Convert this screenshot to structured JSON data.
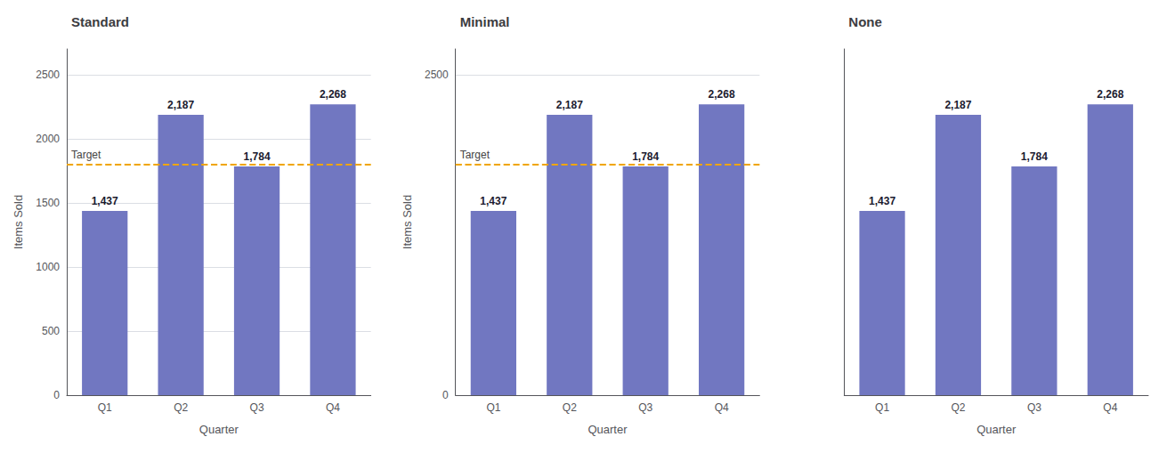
{
  "chart_data": [
    {
      "type": "bar",
      "title": "Standard",
      "xlabel": "Quarter",
      "ylabel": "Items Sold",
      "categories": [
        "Q1",
        "Q2",
        "Q3",
        "Q4"
      ],
      "values": [
        1437,
        2187,
        1784,
        2268
      ],
      "value_labels": [
        "1,437",
        "2,187",
        "1,784",
        "2,268"
      ],
      "data_labels": true,
      "color": "#7177c1",
      "ylim": [
        0,
        2700
      ],
      "yticks": [
        0,
        500,
        1000,
        1500,
        2000,
        2500
      ],
      "grid": true,
      "annotations": [
        {
          "type": "hline",
          "y": 1800,
          "text": "Target",
          "color": "#f0a500",
          "line_style": "dashed"
        }
      ]
    },
    {
      "type": "bar",
      "title": "Minimal",
      "xlabel": "Quarter",
      "ylabel": "Items Sold",
      "categories": [
        "Q1",
        "Q2",
        "Q3",
        "Q4"
      ],
      "values": [
        1437,
        2187,
        1784,
        2268
      ],
      "value_labels": [
        "1,437",
        "2,187",
        "1,784",
        "2,268"
      ],
      "data_labels": true,
      "color": "#7177c1",
      "ylim": [
        0,
        2700
      ],
      "yticks": [
        0,
        2500
      ],
      "grid": true,
      "annotations": [
        {
          "type": "hline",
          "y": 1800,
          "text": "Target",
          "color": "#f0a500",
          "line_style": "dashed"
        }
      ]
    },
    {
      "type": "bar",
      "title": "None",
      "xlabel": "Quarter",
      "categories": [
        "Q1",
        "Q2",
        "Q3",
        "Q4"
      ],
      "values": [
        1437,
        2187,
        1784,
        2268
      ],
      "value_labels": [
        "1,437",
        "2,187",
        "1,784",
        "2,268"
      ],
      "data_labels": true,
      "color": "#7177c1",
      "ylim": [
        0,
        2700
      ],
      "yticks": [],
      "grid": false,
      "tick_labels": "x"
    }
  ]
}
